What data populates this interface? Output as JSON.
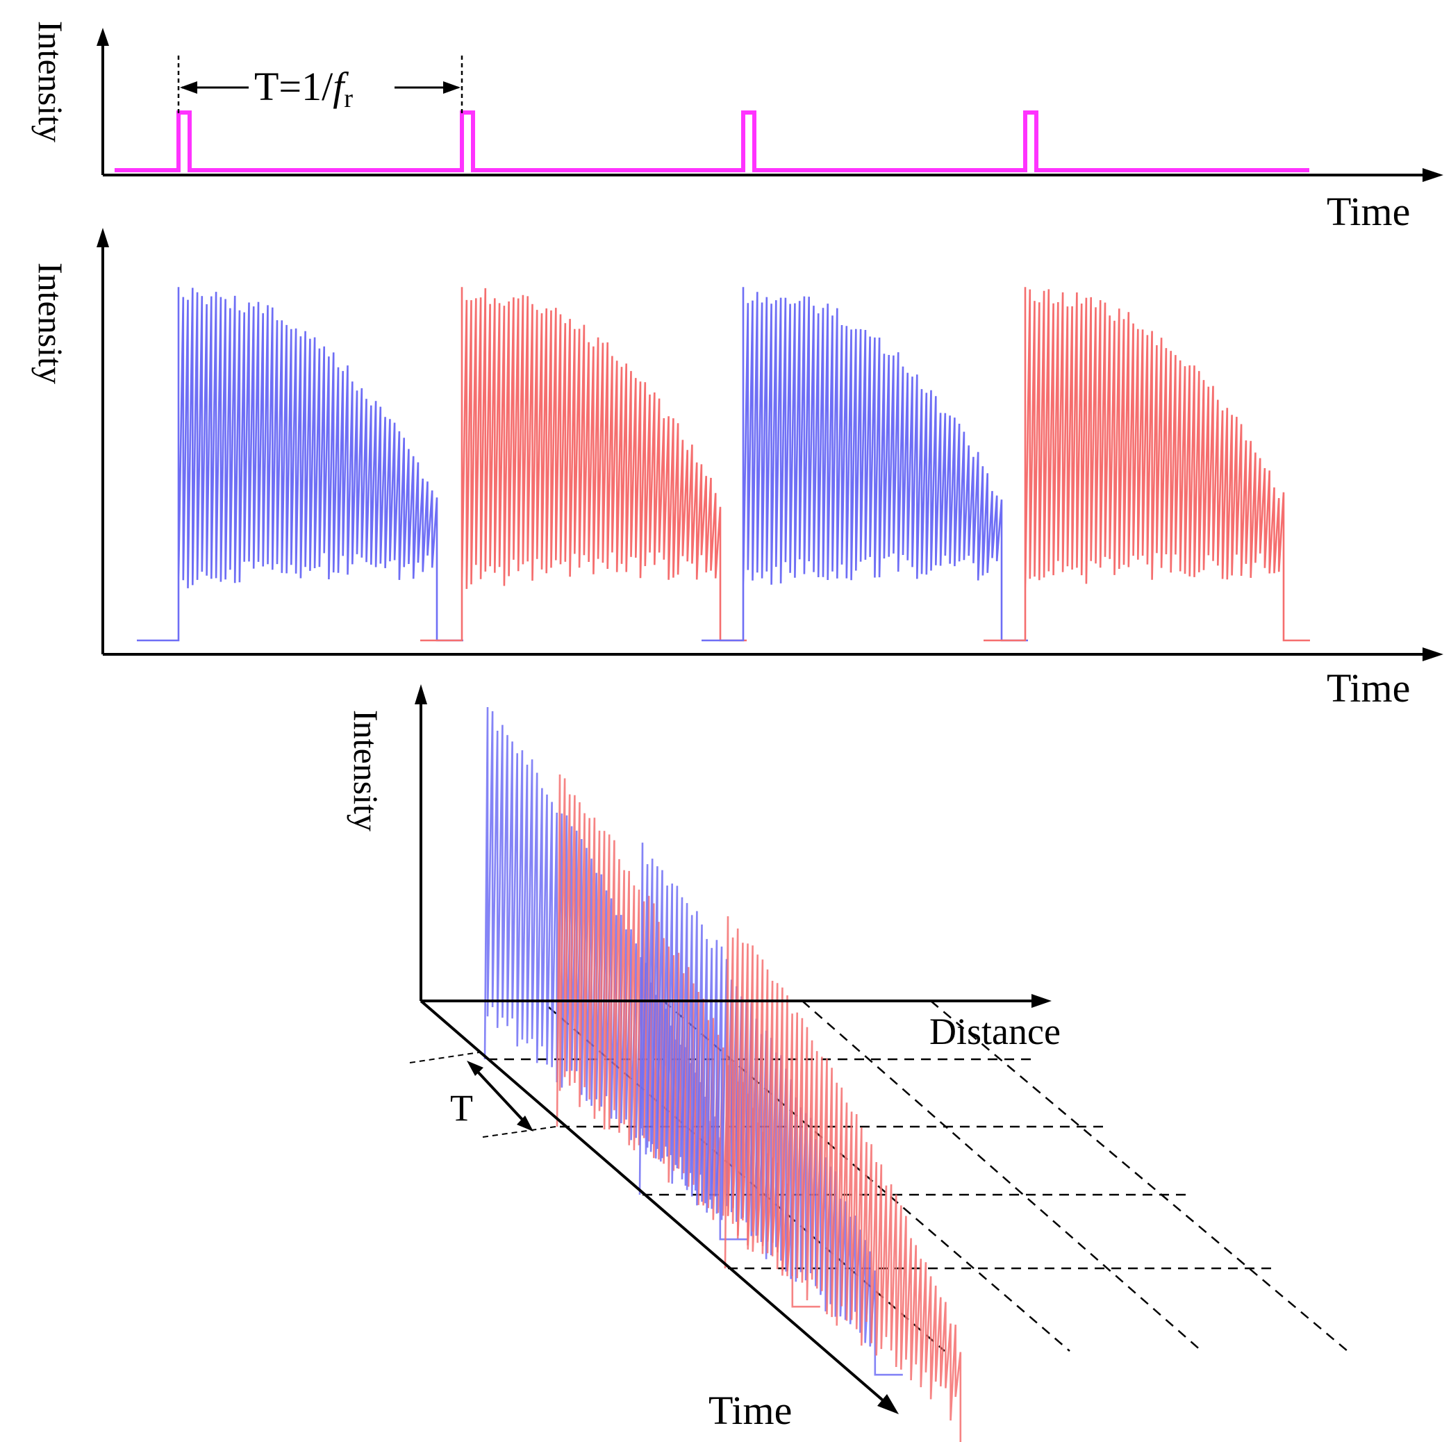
{
  "colors": {
    "pulse": "#ff33ff",
    "trace_blue": "#6e6ef5",
    "trace_red": "#f56e6e",
    "axis": "#000000"
  },
  "panel_top": {
    "y_label": "Intensity",
    "x_label": "Time",
    "period_label_prefix": "T=1/",
    "period_label_italic": "f",
    "period_label_sub": "r",
    "pulse_count": 4
  },
  "panel_middle": {
    "y_label": "Intensity",
    "x_label": "Time",
    "trace_colors": [
      "blue",
      "red",
      "blue",
      "red"
    ]
  },
  "panel_bottom": {
    "z_label": "Intensity",
    "x_label": "Distance",
    "t_label": "Time",
    "period_label": "T",
    "trace_colors": [
      "blue",
      "red",
      "blue",
      "red"
    ]
  }
}
